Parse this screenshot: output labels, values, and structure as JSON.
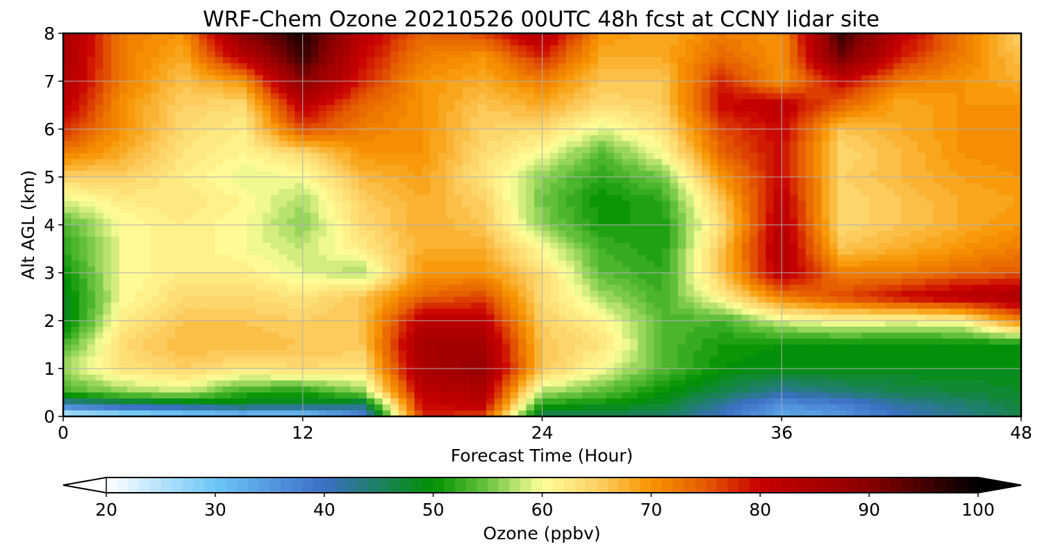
{
  "chart_data": {
    "type": "heatmap",
    "title": "WRF-Chem Ozone  20210526 00UTC 48h fcst at CCNY lidar site",
    "xlabel": "Forecast Time (Hour)",
    "ylabel": "Alt AGL (km)",
    "xlim": [
      0,
      48
    ],
    "ylim": [
      0,
      8
    ],
    "x_ticks": [
      0,
      12,
      24,
      36,
      48
    ],
    "y_ticks": [
      0,
      1,
      2,
      3,
      4,
      5,
      6,
      7,
      8
    ],
    "grid": true,
    "x": [
      0,
      3,
      6,
      9,
      12,
      15,
      18,
      21,
      24,
      27,
      30,
      33,
      36,
      39,
      42,
      45,
      48
    ],
    "y": [
      0,
      0.25,
      0.5,
      1,
      1.5,
      2,
      2.5,
      3,
      3.5,
      4,
      4.5,
      5,
      5.5,
      6,
      6.5,
      7,
      7.5,
      8
    ],
    "z": [
      [
        22,
        24,
        26,
        28,
        27,
        36,
        78,
        76,
        45,
        45,
        45,
        40,
        33,
        35,
        40,
        43,
        46
      ],
      [
        40,
        44,
        46,
        48,
        48,
        45,
        80,
        82,
        51,
        50,
        48,
        42,
        36,
        38,
        42,
        44,
        47
      ],
      [
        53,
        56,
        58,
        52,
        51,
        56,
        82,
        84,
        57,
        54,
        50,
        46,
        42,
        44,
        46,
        47,
        48
      ],
      [
        57,
        63,
        65,
        63,
        64,
        63,
        85,
        88,
        66,
        60,
        54,
        50,
        49,
        49,
        49,
        49,
        49
      ],
      [
        53,
        64,
        67,
        67,
        66,
        66,
        86,
        86,
        66,
        63,
        54,
        51,
        50,
        50,
        50,
        50,
        50
      ],
      [
        48,
        62,
        66,
        66,
        65,
        66,
        82,
        82,
        65,
        61,
        54,
        53,
        59,
        61,
        60,
        61,
        72
      ],
      [
        48,
        60,
        64,
        64,
        63,
        66,
        74,
        76,
        64,
        57,
        53,
        62,
        72,
        76,
        80,
        83,
        85
      ],
      [
        50,
        60,
        62,
        62,
        59,
        57,
        70,
        70,
        64,
        54,
        52,
        66,
        83,
        72,
        72,
        74,
        75
      ],
      [
        52,
        60,
        62,
        60,
        58,
        62,
        68,
        68,
        60,
        53,
        51,
        66,
        84,
        66,
        68,
        70,
        72
      ],
      [
        53,
        60,
        62,
        60,
        56,
        64,
        68,
        66,
        56,
        51,
        51,
        64,
        83,
        64,
        66,
        68,
        70
      ],
      [
        59,
        62,
        63,
        61,
        57,
        65,
        68,
        65,
        55,
        50,
        52,
        66,
        82,
        64,
        66,
        68,
        69
      ],
      [
        65,
        65,
        62,
        59,
        60,
        67,
        69,
        63,
        56,
        52,
        55,
        70,
        80,
        65,
        67,
        69,
        70
      ],
      [
        72,
        68,
        63,
        61,
        64,
        70,
        70,
        64,
        60,
        54,
        60,
        74,
        80,
        64,
        67,
        70,
        71
      ],
      [
        78,
        70,
        64,
        62,
        76,
        72,
        70,
        65,
        64,
        59,
        63,
        76,
        80,
        66,
        68,
        70,
        71
      ],
      [
        82,
        70,
        65,
        64,
        82,
        74,
        70,
        66,
        68,
        64,
        65,
        80,
        82,
        74,
        68,
        70,
        70
      ],
      [
        84,
        72,
        66,
        70,
        90,
        78,
        70,
        68,
        72,
        66,
        66,
        78,
        70,
        80,
        72,
        70,
        68
      ],
      [
        85,
        72,
        68,
        82,
        96,
        80,
        72,
        70,
        78,
        68,
        68,
        74,
        70,
        92,
        78,
        72,
        66
      ],
      [
        86,
        72,
        70,
        90,
        98,
        82,
        74,
        76,
        84,
        70,
        68,
        72,
        70,
        96,
        82,
        72,
        65
      ]
    ],
    "colorbar": {
      "label": "Ozone  (ppbv)",
      "min": 20,
      "max": 100,
      "ticks": [
        20,
        30,
        40,
        50,
        60,
        70,
        80,
        90,
        100
      ],
      "extend": "both",
      "location": "bottom",
      "stops": [
        {
          "v": 20,
          "c": "#ffffff"
        },
        {
          "v": 30,
          "c": "#6ec6f7"
        },
        {
          "v": 40,
          "c": "#3b6fc6"
        },
        {
          "v": 50,
          "c": "#009100"
        },
        {
          "v": 55,
          "c": "#6cc441"
        },
        {
          "v": 60,
          "c": "#ffff99"
        },
        {
          "v": 65,
          "c": "#fcd166"
        },
        {
          "v": 70,
          "c": "#f79400"
        },
        {
          "v": 75,
          "c": "#e55a00"
        },
        {
          "v": 80,
          "c": "#c80000"
        },
        {
          "v": 90,
          "c": "#8a0000"
        },
        {
          "v": 100,
          "c": "#000000"
        }
      ]
    }
  }
}
